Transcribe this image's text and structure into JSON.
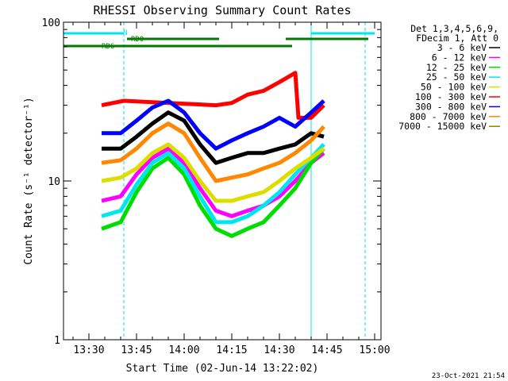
{
  "chart_data": {
    "type": "line",
    "title": "RHESSI Observing Summary Count Rates",
    "xlabel": "Start Time (02-Jun-14 13:22:02)",
    "ylabel": "Count Rate (s⁻¹ detector⁻¹)",
    "x_range": [
      "13:22",
      "15:02"
    ],
    "y_range": [
      1,
      100
    ],
    "y_scale": "log",
    "x_ticks": [
      "13:30",
      "13:45",
      "14:00",
      "14:15",
      "14:30",
      "14:45",
      "15:00"
    ],
    "y_ticks": [
      "1",
      "10",
      "100"
    ],
    "legend_header": [
      "Det 1,3,4,5,6,9,",
      "FDecim 1, Att 0"
    ],
    "legend_position": "right",
    "timestamp": "23-Oct-2021 21:54",
    "flags": [
      {
        "label": "N",
        "color": "#00e5ee",
        "segments": [
          [
            "13:22",
            "13:41"
          ],
          [
            "14:40",
            "15:00"
          ]
        ]
      },
      {
        "label": "RD0",
        "color": "#007a00",
        "segments": [
          [
            "13:42",
            "14:11"
          ],
          [
            "14:32",
            "14:58"
          ]
        ]
      },
      {
        "label": "RD6",
        "color": "#007a00",
        "segments": [
          [
            "13:22",
            "14:10"
          ],
          [
            "14:10",
            "14:34"
          ]
        ]
      }
    ],
    "dashed_lines": [
      "13:41",
      "14:57"
    ],
    "solid_lines": [
      "14:40"
    ],
    "series": [
      {
        "name": "3 - 6 keV",
        "color": "#000000",
        "x": [
          "13:34",
          "13:40",
          "13:45",
          "13:50",
          "13:55",
          "14:00",
          "14:05",
          "14:10",
          "14:15",
          "14:20",
          "14:25",
          "14:30",
          "14:35",
          "14:40",
          "14:44"
        ],
        "y": [
          16,
          16,
          19,
          23,
          27,
          24,
          17,
          13,
          14,
          15,
          15,
          16,
          17,
          20,
          19
        ]
      },
      {
        "name": "6 - 12 keV",
        "color": "#ff00ff",
        "x": [
          "13:34",
          "13:40",
          "13:45",
          "13:50",
          "13:55",
          "14:00",
          "14:05",
          "14:10",
          "14:15",
          "14:20",
          "14:25",
          "14:30",
          "14:35",
          "14:40",
          "14:44"
        ],
        "y": [
          7.5,
          8,
          11,
          14,
          16,
          13,
          9,
          6.5,
          6,
          6.5,
          7,
          8,
          10,
          13,
          15
        ]
      },
      {
        "name": "12 - 25 keV",
        "color": "#00dd00",
        "x": [
          "13:34",
          "13:40",
          "13:45",
          "13:50",
          "13:55",
          "14:00",
          "14:05",
          "14:10",
          "14:15",
          "14:20",
          "14:25",
          "14:30",
          "14:35",
          "14:40",
          "14:44"
        ],
        "y": [
          5,
          5.5,
          8.5,
          12,
          14,
          11,
          7,
          5,
          4.5,
          5,
          5.5,
          7,
          9,
          13,
          16
        ]
      },
      {
        "name": "25 - 50 keV",
        "color": "#00e5ee",
        "x": [
          "13:34",
          "13:40",
          "13:45",
          "13:50",
          "13:55",
          "14:00",
          "14:05",
          "14:10",
          "14:15",
          "14:20",
          "14:25",
          "14:30",
          "14:35",
          "14:40",
          "14:44"
        ],
        "y": [
          6,
          6.5,
          9.5,
          13,
          15,
          12,
          8,
          5.5,
          5.5,
          6,
          7,
          8.5,
          11,
          14,
          17
        ]
      },
      {
        "name": "50 - 100 keV",
        "color": "#dddd00",
        "x": [
          "13:34",
          "13:40",
          "13:45",
          "13:50",
          "13:55",
          "14:00",
          "14:05",
          "14:10",
          "14:15",
          "14:20",
          "14:25",
          "14:30",
          "14:35",
          "14:40",
          "14:44"
        ],
        "y": [
          10,
          10.5,
          12,
          15,
          17,
          14,
          10,
          7.5,
          7.5,
          8,
          8.5,
          10,
          12,
          14,
          16
        ]
      },
      {
        "name": "100 - 300 keV",
        "color": "#ff0000",
        "x": [
          "13:34",
          "13:41",
          "14:10",
          "14:15",
          "14:20",
          "14:25",
          "14:30",
          "14:35",
          "14:36",
          "14:40",
          "14:44"
        ],
        "y": [
          30,
          32,
          30,
          31,
          35,
          37,
          42,
          48,
          25,
          25,
          30
        ]
      },
      {
        "name": "300 - 800 keV",
        "color": "#0000ff",
        "x": [
          "13:34",
          "13:40",
          "13:45",
          "13:50",
          "13:55",
          "14:00",
          "14:05",
          "14:10",
          "14:15",
          "14:20",
          "14:25",
          "14:30",
          "14:35",
          "14:40",
          "14:44"
        ],
        "y": [
          20,
          20,
          24,
          29,
          32,
          27,
          20,
          16,
          18,
          20,
          22,
          25,
          22,
          27,
          32
        ]
      },
      {
        "name": "800 - 7000 keV",
        "color": "#ff8800",
        "x": [
          "13:34",
          "13:40",
          "13:45",
          "13:50",
          "13:55",
          "14:00",
          "14:05",
          "14:10",
          "14:15",
          "14:20",
          "14:25",
          "14:30",
          "14:35",
          "14:40",
          "14:44"
        ],
        "y": [
          13,
          13.5,
          16,
          20,
          23,
          20,
          14,
          10,
          10.5,
          11,
          12,
          13,
          15,
          18,
          22
        ]
      },
      {
        "name": "7000 - 15000 keV",
        "color": "#888800",
        "x": [],
        "y": []
      }
    ]
  }
}
